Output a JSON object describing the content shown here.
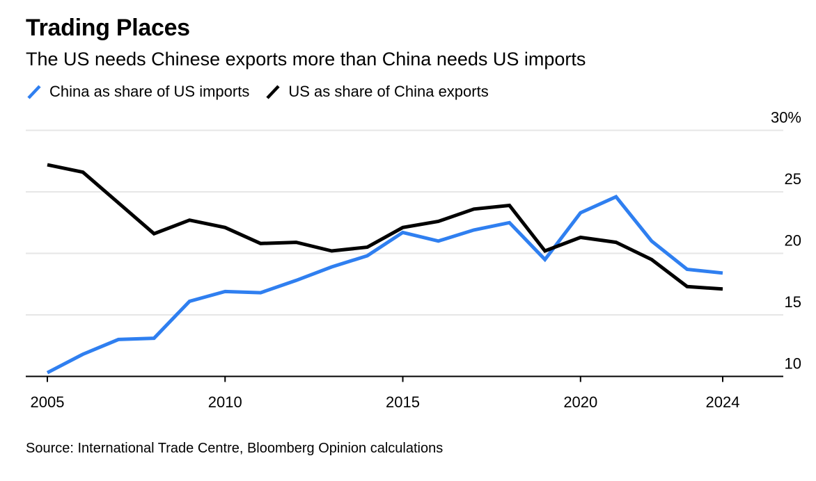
{
  "title": "Trading Places",
  "subtitle": "The US needs Chinese exports more than China needs US imports",
  "source": "Source: International Trade Centre, Bloomberg Opinion calculations",
  "colors": {
    "series_1": "#2f7ff0",
    "series_2": "#000000",
    "gridline": "#e6e6e6",
    "axis": "#000000"
  },
  "chart_data": {
    "type": "line",
    "title": "Trading Places",
    "subtitle": "The US needs Chinese exports more than China needs US imports",
    "xlabel": "",
    "ylabel": "",
    "xlim": [
      2005,
      2024
    ],
    "ylim": [
      10,
      30
    ],
    "y_ticks": [
      {
        "value": 30,
        "label": "30%"
      },
      {
        "value": 25,
        "label": "25"
      },
      {
        "value": 20,
        "label": "20"
      },
      {
        "value": 15,
        "label": "15"
      },
      {
        "value": 10,
        "label": "10"
      }
    ],
    "x_ticks": [
      {
        "value": 2005,
        "label": "2005"
      },
      {
        "value": 2010,
        "label": "2010"
      },
      {
        "value": 2015,
        "label": "2015"
      },
      {
        "value": 2020,
        "label": "2020"
      },
      {
        "value": 2024,
        "label": "2024"
      }
    ],
    "grid": true,
    "y_axis_side": "right",
    "legend_position": "top-left",
    "x": [
      2005,
      2006,
      2007,
      2008,
      2009,
      2010,
      2011,
      2012,
      2013,
      2014,
      2015,
      2016,
      2017,
      2018,
      2019,
      2020,
      2021,
      2022,
      2023,
      2024
    ],
    "series": [
      {
        "name": "China as share of US imports",
        "color": "#2f7ff0",
        "values": [
          10.3,
          11.8,
          13.0,
          13.1,
          16.1,
          16.9,
          16.8,
          17.8,
          18.9,
          19.8,
          21.7,
          21.0,
          21.9,
          22.5,
          19.5,
          23.3,
          24.6,
          21.0,
          18.7,
          18.4
        ]
      },
      {
        "name": "US as share of China exports",
        "color": "#000000",
        "values": [
          27.2,
          26.6,
          24.1,
          21.6,
          22.7,
          22.1,
          20.8,
          20.9,
          20.2,
          20.5,
          22.1,
          22.6,
          23.6,
          23.9,
          20.2,
          21.3,
          20.9,
          19.5,
          17.3,
          17.1
        ]
      }
    ]
  }
}
